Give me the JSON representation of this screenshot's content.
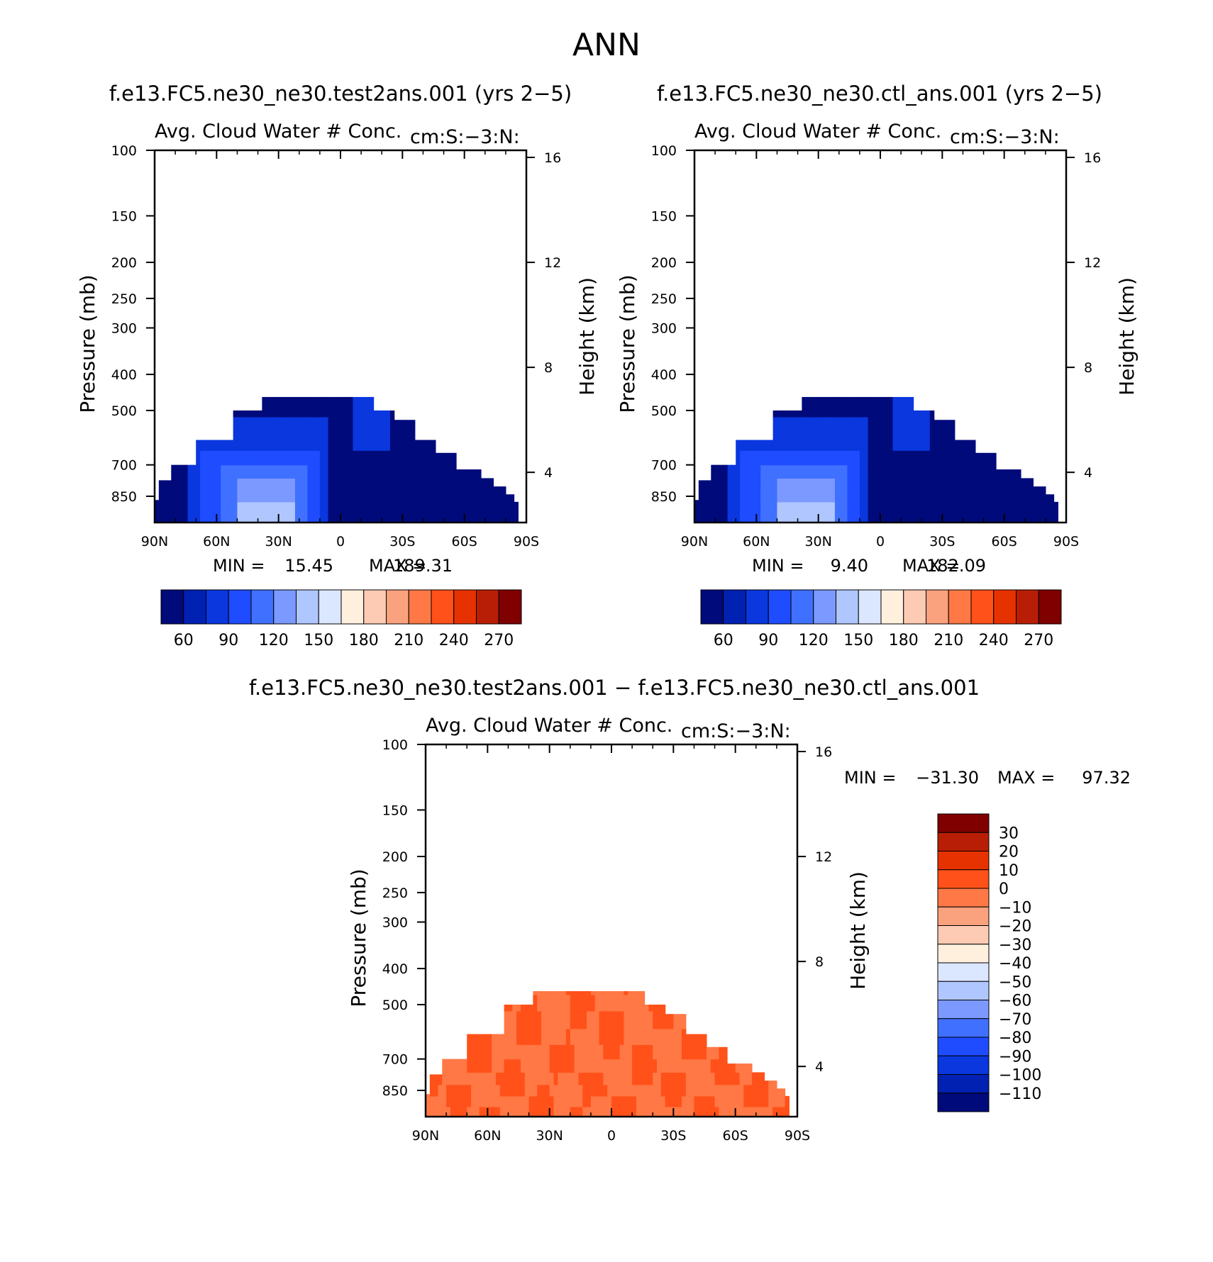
{
  "figure": {
    "title": "ANN"
  },
  "chart_data": [
    {
      "type": "heatmap",
      "title": "f.e13.FC5.ne30_ne30.test2ans.001 (yrs 2−5)",
      "subtitle_left": "Avg. Cloud Water # Conc.",
      "subtitle_right": "cm:S:−3:N:",
      "ylabel": "Pressure (mb)",
      "ylabel_right": "Height (km)",
      "xticks": [
        "90N",
        "60N",
        "30N",
        "0",
        "30S",
        "60S",
        "90S"
      ],
      "yticks": [
        "100",
        "150",
        "200",
        "250",
        "300",
        "400",
        "500",
        "700",
        "850"
      ],
      "yticks_right": [
        "16",
        "12",
        "8",
        "4"
      ],
      "ylim": [
        1000,
        100
      ],
      "min_label": "MIN =",
      "min_value": "15.45",
      "max_label": "MAX =",
      "max_value": "189.31",
      "colorbar_labels": [
        "60",
        "90",
        "120",
        "150",
        "180",
        "210",
        "240",
        "270"
      ],
      "colorbar_colors": [
        "#000a7a",
        "#0021b2",
        "#0a37de",
        "#1f4cff",
        "#4070ff",
        "#7b99ff",
        "#b0c6ff",
        "#dbe6ff",
        "#fff0de",
        "#fdcbb3",
        "#faa17e",
        "#ff7845",
        "#ff5119",
        "#e63200",
        "#b81e05",
        "#800000"
      ]
    },
    {
      "type": "heatmap",
      "title": "f.e13.FC5.ne30_ne30.ctl_ans.001 (yrs 2−5)",
      "subtitle_left": "Avg. Cloud Water # Conc.",
      "subtitle_right": "cm:S:−3:N:",
      "ylabel": "Pressure (mb)",
      "ylabel_right": "Height (km)",
      "xticks": [
        "90N",
        "60N",
        "30N",
        "0",
        "30S",
        "60S",
        "90S"
      ],
      "yticks": [
        "100",
        "150",
        "200",
        "250",
        "300",
        "400",
        "500",
        "700",
        "850"
      ],
      "yticks_right": [
        "16",
        "12",
        "8",
        "4"
      ],
      "ylim": [
        1000,
        100
      ],
      "min_label": "MIN =",
      "min_value": "9.40",
      "max_label": "MAX =",
      "max_value": "182.09",
      "colorbar_labels": [
        "60",
        "90",
        "120",
        "150",
        "180",
        "210",
        "240",
        "270"
      ],
      "colorbar_colors": [
        "#000a7a",
        "#0021b2",
        "#0a37de",
        "#1f4cff",
        "#4070ff",
        "#7b99ff",
        "#b0c6ff",
        "#dbe6ff",
        "#fff0de",
        "#fdcbb3",
        "#faa17e",
        "#ff7845",
        "#ff5119",
        "#e63200",
        "#b81e05",
        "#800000"
      ]
    },
    {
      "type": "heatmap",
      "title": "f.e13.FC5.ne30_ne30.test2ans.001 − f.e13.FC5.ne30_ne30.ctl_ans.001",
      "subtitle_left": "Avg. Cloud Water # Conc.",
      "subtitle_right": "cm:S:−3:N:",
      "ylabel": "Pressure (mb)",
      "ylabel_right": "Height (km)",
      "xticks": [
        "90N",
        "60N",
        "30N",
        "0",
        "30S",
        "60S",
        "90S"
      ],
      "yticks": [
        "100",
        "150",
        "200",
        "250",
        "300",
        "400",
        "500",
        "700",
        "850"
      ],
      "yticks_right": [
        "16",
        "12",
        "8",
        "4"
      ],
      "ylim": [
        1000,
        100
      ],
      "min_label": "MIN =",
      "min_value": "−31.30",
      "max_label": "MAX =",
      "max_value": "97.32",
      "colorbar_labels": [
        "30",
        "20",
        "10",
        "0",
        "−10",
        "−20",
        "−30",
        "−40",
        "−50",
        "−60",
        "−70",
        "−80",
        "−90",
        "−100",
        "−110"
      ],
      "colorbar_colors": [
        "#800000",
        "#b81e05",
        "#e63200",
        "#ff5119",
        "#ff7845",
        "#faa17e",
        "#fdcbb3",
        "#fff0de",
        "#dbe6ff",
        "#b0c6ff",
        "#7b99ff",
        "#4070ff",
        "#1f4cff",
        "#0a37de",
        "#0021b2",
        "#000a7a"
      ]
    }
  ]
}
